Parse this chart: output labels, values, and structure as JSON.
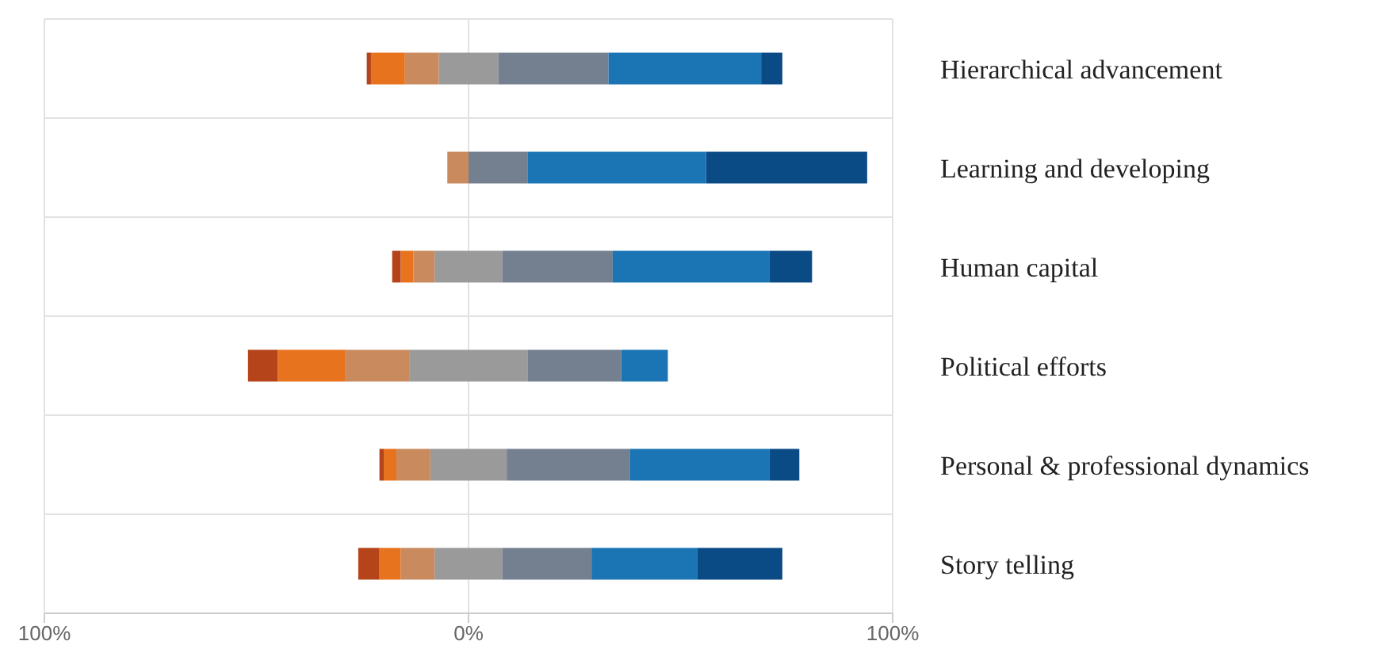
{
  "chart_data": {
    "type": "bar",
    "orientation": "horizontal",
    "stacked": true,
    "categories": [
      "Hierarchical advancement",
      "Learning and developing",
      "Human capital",
      "Political efforts",
      "Personal & professional dynamics",
      "Story telling"
    ],
    "series": [
      {
        "color": "#9a9a9a",
        "values": [
          -7,
          0,
          -8,
          -14,
          -9,
          -8
        ]
      },
      {
        "color": "#c98b5e",
        "values": [
          -8,
          -5,
          -5,
          -15,
          -8,
          -8
        ]
      },
      {
        "color": "#e8731e",
        "values": [
          -8,
          0,
          -3,
          -16,
          -3,
          -5
        ]
      },
      {
        "color": "#b5441b",
        "values": [
          -1,
          0,
          -2,
          -7,
          -1,
          -5
        ]
      },
      {
        "color": "#9a9a9a",
        "values": [
          7,
          0,
          8,
          14,
          9,
          8
        ]
      },
      {
        "color": "#74808f",
        "values": [
          26,
          14,
          26,
          22,
          29,
          21
        ]
      },
      {
        "color": "#1b75b4",
        "values": [
          36,
          42,
          37,
          11,
          33,
          25
        ]
      },
      {
        "color": "#0b4b85",
        "values": [
          5,
          38,
          10,
          0,
          7,
          20
        ]
      }
    ],
    "xlim": [
      -100,
      100
    ],
    "xticks": [
      {
        "value": -100,
        "label": "100%"
      },
      {
        "value": 0,
        "label": "0%"
      },
      {
        "value": 100,
        "label": "100%"
      }
    ],
    "grid": true
  }
}
